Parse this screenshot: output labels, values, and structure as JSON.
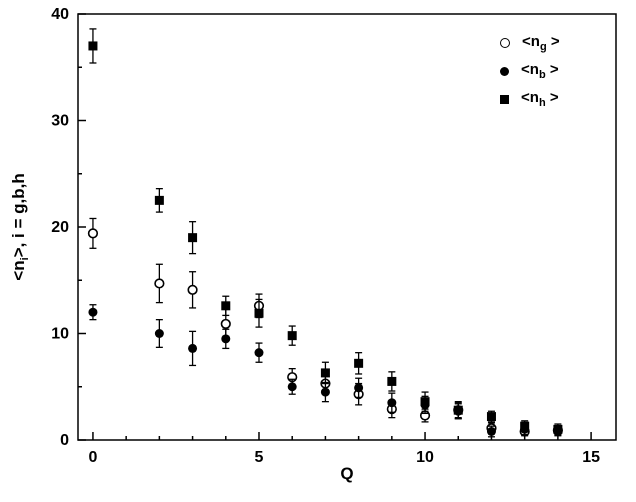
{
  "colors": {
    "foreground": "#000000",
    "background": "#ffffff"
  },
  "chart_data": {
    "type": "scatter",
    "title": "",
    "xlabel": "Q",
    "ylabel_parts": {
      "pre": "<n",
      "sub": "i",
      "post": ">, i = g,b,h"
    },
    "xlim": [
      -0.45,
      15.75
    ],
    "ylim": [
      0,
      40
    ],
    "xticks": [
      0,
      5,
      10,
      15
    ],
    "yticks": [
      0,
      10,
      20,
      30,
      40
    ],
    "x_minor_step": 1,
    "y_minor_step": 5,
    "grid": false,
    "legend": {
      "position": "top-right",
      "entries": [
        {
          "pre": "<n",
          "sub": "g",
          "post": " >",
          "marker": "open-circle"
        },
        {
          "pre": "<n",
          "sub": "b",
          "post": " >",
          "marker": "filled-circle"
        },
        {
          "pre": "<n",
          "sub": "h",
          "post": " >",
          "marker": "filled-square"
        }
      ]
    },
    "series": [
      {
        "id": "ng",
        "name": "<n_g>",
        "marker": "open-circle",
        "x": [
          0,
          2,
          3,
          4,
          5,
          6,
          7,
          8,
          9,
          10,
          11,
          12,
          13,
          14
        ],
        "y": [
          19.4,
          14.7,
          14.1,
          10.9,
          12.6,
          5.9,
          5.3,
          4.3,
          2.9,
          2.3,
          2.8,
          1.1,
          0.8,
          0.9
        ],
        "err": [
          1.4,
          1.8,
          1.7,
          1.4,
          1.1,
          0.8,
          0.9,
          1.0,
          0.8,
          0.6,
          0.7,
          0.5,
          0.4,
          0.4
        ]
      },
      {
        "id": "nb",
        "name": "<n_b>",
        "marker": "filled-circle",
        "x": [
          0,
          2,
          3,
          4,
          5,
          6,
          7,
          8,
          9,
          10,
          11,
          12,
          13,
          14
        ],
        "y": [
          12.0,
          10.0,
          8.6,
          9.5,
          8.2,
          5.0,
          4.5,
          4.9,
          3.5,
          3.3,
          2.7,
          0.8,
          1.0,
          0.8
        ],
        "err": [
          0.7,
          1.3,
          1.6,
          0.9,
          0.9,
          0.7,
          0.9,
          0.9,
          0.9,
          0.8,
          0.7,
          0.5,
          0.5,
          0.4
        ]
      },
      {
        "id": "nh",
        "name": "<n_h>",
        "marker": "filled-square",
        "x": [
          0,
          2,
          3,
          4,
          5,
          6,
          7,
          8,
          9,
          10,
          11,
          12,
          13,
          14
        ],
        "y": [
          37.0,
          22.5,
          19.0,
          12.6,
          11.9,
          9.8,
          6.3,
          7.2,
          5.5,
          3.6,
          2.8,
          2.2,
          1.3,
          1.0
        ],
        "err": [
          1.6,
          1.1,
          1.5,
          0.9,
          1.3,
          0.9,
          1.0,
          1.0,
          0.9,
          0.9,
          0.8,
          0.5,
          0.5,
          0.5
        ]
      }
    ]
  }
}
